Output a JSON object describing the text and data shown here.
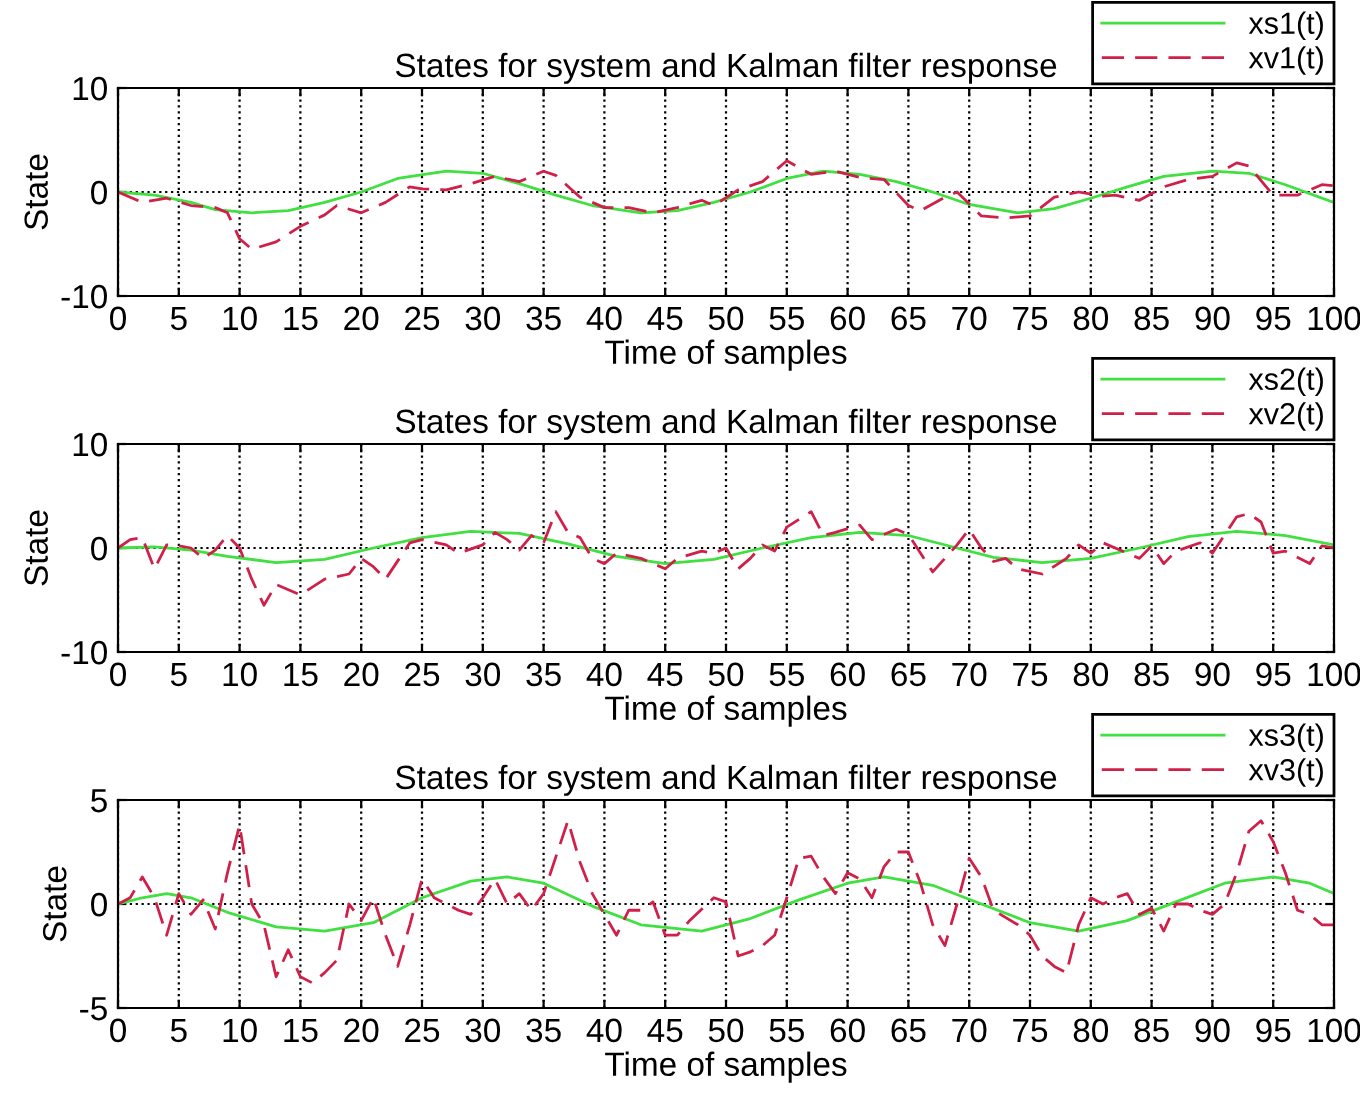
{
  "chart_data": [
    {
      "type": "line",
      "title": "States for system and Kalman filter response",
      "xlabel": "Time of samples",
      "ylabel": "State",
      "xlim": [
        0,
        100
      ],
      "xticks": [
        0,
        5,
        10,
        15,
        20,
        25,
        30,
        35,
        40,
        45,
        50,
        55,
        60,
        65,
        70,
        75,
        80,
        85,
        90,
        95,
        100
      ],
      "ylim": [
        -10,
        10
      ],
      "yticks": [
        -10,
        0,
        10
      ],
      "grid": true,
      "legend": "top right",
      "series": [
        {
          "name": "xs1(t)",
          "color": "#40e040",
          "line_style": "solid",
          "x": [
            0,
            3,
            6,
            8,
            11,
            14,
            17,
            20,
            23,
            27,
            30,
            33,
            36,
            39,
            43,
            46,
            49,
            52,
            55,
            58,
            61,
            64,
            67,
            70,
            74,
            77,
            80,
            83,
            86,
            90,
            93,
            96,
            100
          ],
          "values": [
            0,
            -0.3,
            -1,
            -1.7,
            -2,
            -1.8,
            -1,
            0,
            1.3,
            2,
            1.8,
            0.8,
            -0.3,
            -1.3,
            -2,
            -1.8,
            -1,
            0,
            1.3,
            2,
            1.7,
            1,
            0,
            -1.2,
            -2,
            -1.6,
            -0.6,
            0.5,
            1.5,
            2,
            1.8,
            0.7,
            -1
          ]
        },
        {
          "name": "xv1(t)",
          "color": "#d0204a",
          "line_style": "dashed",
          "x": [
            0,
            2,
            4,
            6,
            8,
            9,
            10,
            11,
            13,
            15,
            17,
            18,
            20,
            22,
            24,
            25,
            27,
            29,
            31,
            33,
            35,
            36,
            38,
            40,
            42,
            44,
            46,
            48,
            49,
            51,
            53,
            55,
            57,
            59,
            61,
            63,
            65,
            66,
            68,
            69,
            71,
            73,
            75,
            77,
            79,
            81,
            82,
            84,
            86,
            88,
            90,
            92,
            93,
            95,
            97,
            99,
            100
          ],
          "values": [
            0,
            -1,
            -0.6,
            -1.3,
            -1.5,
            -2,
            -4.5,
            -5.5,
            -4.8,
            -3.3,
            -2.2,
            -1.3,
            -2,
            -1,
            0.5,
            0.3,
            0.2,
            0.8,
            1.5,
            1,
            2,
            1.6,
            -0.5,
            -1.5,
            -1.5,
            -2,
            -1.5,
            -0.8,
            -1.3,
            0.2,
            1,
            3,
            1.7,
            2,
            1.4,
            1.2,
            -1.3,
            -1.8,
            -0.5,
            0,
            -2.3,
            -2.5,
            -2.3,
            -0.5,
            0,
            -0.4,
            -0.3,
            -0.8,
            0.5,
            1.2,
            1.5,
            2.8,
            2.5,
            -0.3,
            -0.3,
            0.7,
            0.6
          ]
        }
      ]
    },
    {
      "type": "line",
      "title": "States for system and Kalman filter response",
      "xlabel": "Time of samples",
      "ylabel": "State",
      "xlim": [
        0,
        100
      ],
      "xticks": [
        0,
        5,
        10,
        15,
        20,
        25,
        30,
        35,
        40,
        45,
        50,
        55,
        60,
        65,
        70,
        75,
        80,
        85,
        90,
        95,
        100
      ],
      "ylim": [
        -10,
        10
      ],
      "yticks": [
        -10,
        0,
        10
      ],
      "grid": true,
      "legend": "top right",
      "series": [
        {
          "name": "xs2(t)",
          "color": "#40e040",
          "line_style": "solid",
          "x": [
            0,
            3,
            6,
            9,
            13,
            17,
            21,
            25,
            29,
            33,
            37,
            41,
            45,
            49,
            53,
            57,
            61,
            65,
            69,
            72,
            76,
            80,
            84,
            88,
            92,
            96,
            100
          ],
          "values": [
            0,
            0.1,
            -0.2,
            -0.8,
            -1.4,
            -1.1,
            0,
            1,
            1.6,
            1.4,
            0.4,
            -0.8,
            -1.5,
            -1.1,
            0,
            1,
            1.5,
            1.2,
            0,
            -0.9,
            -1.4,
            -1,
            0,
            1.1,
            1.6,
            1.2,
            0.3
          ]
        },
        {
          "name": "xv2(t)",
          "color": "#d0204a",
          "line_style": "dashed",
          "x": [
            0,
            1,
            2,
            3,
            4,
            5,
            6,
            7,
            8,
            9,
            10,
            11,
            12,
            13,
            15,
            17,
            19,
            20,
            21,
            22,
            24,
            25,
            27,
            28,
            30,
            31,
            32,
            33,
            34,
            35,
            36,
            37,
            38,
            39,
            40,
            41,
            43,
            45,
            46,
            48,
            49,
            50,
            51,
            52,
            53,
            54,
            55,
            57,
            58,
            59,
            61,
            62,
            64,
            65,
            66,
            67,
            68,
            69,
            70,
            71,
            72,
            73,
            74,
            76,
            78,
            79,
            80,
            81,
            83,
            84,
            85,
            86,
            87,
            89,
            90,
            92,
            93,
            94,
            95,
            96,
            98,
            99,
            100
          ],
          "values": [
            0,
            0.8,
            1,
            -2,
            0.3,
            0.2,
            0,
            -1,
            -0.2,
            1.2,
            0,
            -3,
            -5.5,
            -3.5,
            -4.5,
            -3,
            -2.5,
            -1,
            -1.8,
            -3,
            0.5,
            0.8,
            0.3,
            -0.5,
            0.3,
            1.5,
            0.8,
            -0.2,
            1.2,
            0.5,
            3.5,
            1.5,
            1,
            -1,
            -1.5,
            -0.5,
            -1,
            -2,
            -1,
            -0.3,
            -0.5,
            0,
            -2,
            -1,
            0.3,
            -0.3,
            2,
            3.5,
            1.2,
            1.5,
            2.2,
            0.8,
            1.8,
            1.3,
            -0.5,
            -2.3,
            -1,
            0.3,
            1.8,
            0,
            -1.3,
            -1,
            -2,
            -2.5,
            -1,
            0.3,
            -0.5,
            0.5,
            -0.5,
            -1,
            0.2,
            -1.5,
            -0.3,
            0.5,
            -0.5,
            3,
            3.3,
            2.5,
            -0.5,
            -0.3,
            -1.5,
            0.2,
            0
          ]
        }
      ]
    },
    {
      "type": "line",
      "title": "States for system and Kalman filter response",
      "xlabel": "Time of samples",
      "ylabel": "State",
      "xlim": [
        0,
        100
      ],
      "xticks": [
        0,
        5,
        10,
        15,
        20,
        25,
        30,
        35,
        40,
        45,
        50,
        55,
        60,
        65,
        70,
        75,
        80,
        85,
        90,
        95,
        100
      ],
      "ylim": [
        -5,
        5
      ],
      "yticks": [
        -5,
        0,
        5
      ],
      "grid": true,
      "legend": "top right",
      "series": [
        {
          "name": "xs3(t)",
          "color": "#40e040",
          "line_style": "solid",
          "x": [
            0,
            2,
            4,
            6,
            9,
            13,
            17,
            21,
            25,
            29,
            32,
            35,
            39,
            43,
            48,
            52,
            56,
            60,
            63,
            67,
            71,
            75,
            79,
            83,
            87,
            91,
            95,
            98,
            100
          ],
          "values": [
            0,
            0.3,
            0.5,
            0.3,
            -0.4,
            -1.1,
            -1.3,
            -0.9,
            0.3,
            1.1,
            1.3,
            1,
            -0.1,
            -1,
            -1.3,
            -0.7,
            0.2,
            1,
            1.3,
            0.9,
            0,
            -0.9,
            -1.3,
            -0.8,
            0.1,
            1,
            1.3,
            1,
            0.5
          ]
        },
        {
          "name": "xv3(t)",
          "color": "#d0204a",
          "line_style": "dashed",
          "x": [
            0,
            1,
            2,
            3,
            4,
            5,
            6,
            7,
            8,
            9,
            10,
            11,
            12,
            13,
            14,
            15,
            16,
            17,
            18,
            19,
            20,
            21,
            22,
            23,
            24,
            25,
            26,
            28,
            29,
            30,
            31,
            32,
            33,
            34,
            35,
            37,
            38,
            39,
            41,
            42,
            43,
            44,
            45,
            46,
            47,
            49,
            50,
            51,
            52,
            53,
            54,
            55,
            56,
            57,
            58,
            59,
            60,
            61,
            62,
            63,
            64,
            65,
            66,
            67,
            68,
            69,
            70,
            71,
            72,
            74,
            75,
            76,
            77,
            78,
            79,
            80,
            81,
            82,
            83,
            84,
            85,
            86,
            87,
            88,
            89,
            90,
            91,
            92,
            93,
            94,
            95,
            96,
            97,
            98,
            99,
            100
          ],
          "values": [
            0,
            0.3,
            1.3,
            0.3,
            -1.5,
            0.5,
            -0.5,
            0.2,
            -1.2,
            1.5,
            3.8,
            0,
            -1,
            -3.5,
            -2.2,
            -3.5,
            -3.8,
            -3.3,
            -2.7,
            0,
            -0.8,
            0.3,
            -1.5,
            -3,
            -1,
            1.2,
            0.3,
            -0.3,
            -0.5,
            0.3,
            1.2,
            0,
            0.5,
            -0.3,
            0.5,
            4,
            2,
            0.5,
            -1.5,
            -0.3,
            -0.3,
            0.1,
            -1.5,
            -1.5,
            -0.8,
            0.3,
            0.1,
            -2.5,
            -2.3,
            -2,
            -1.5,
            0.3,
            2.2,
            2.3,
            1.3,
            0.5,
            1.5,
            1.2,
            0.3,
            1.8,
            2.5,
            2.5,
            1,
            -1,
            -2,
            0,
            2.2,
            1.3,
            -0.3,
            -1,
            -1.5,
            -2.5,
            -3,
            -3.3,
            -1,
            0.3,
            0,
            0.3,
            0.5,
            -0.5,
            -0.2,
            -1.3,
            0,
            0,
            -0.3,
            -0.5,
            0,
            1.5,
            3.5,
            4,
            3,
            1.5,
            -0.3,
            -0.5,
            -1,
            -1
          ]
        }
      ]
    }
  ]
}
